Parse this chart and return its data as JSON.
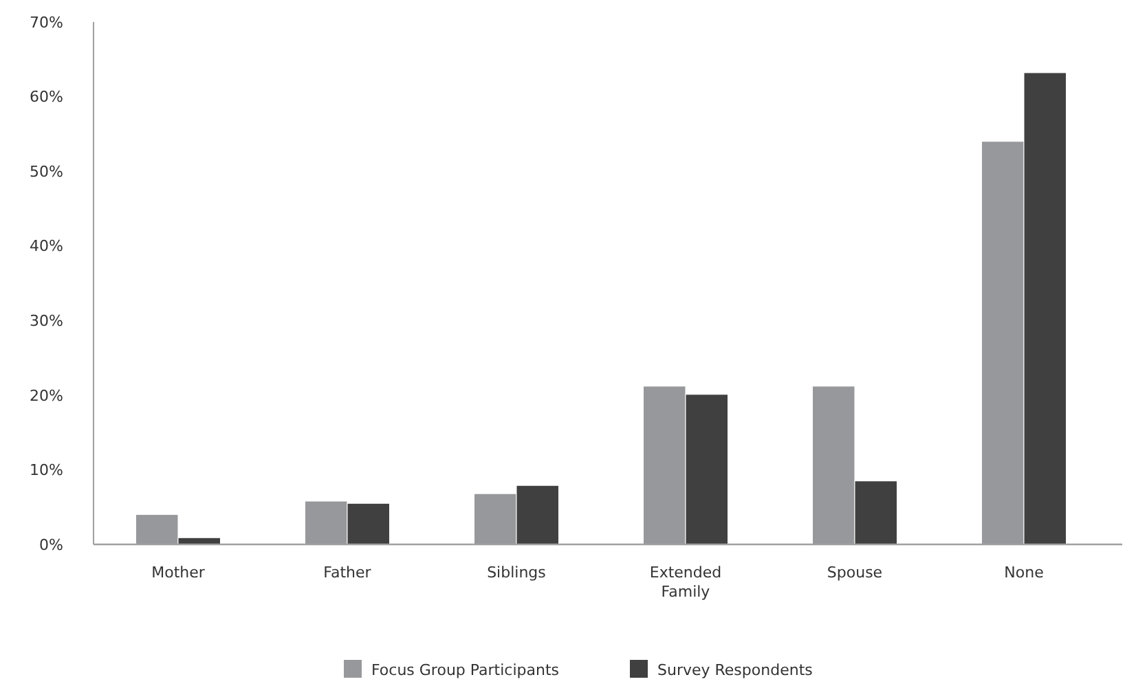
{
  "chart_data": {
    "type": "bar",
    "categories": [
      "Mother",
      "Father",
      "Siblings",
      "Extended Family",
      "Spouse",
      "None"
    ],
    "series": [
      {
        "name": "Focus Group Participants",
        "color": "#97989b",
        "values": [
          4.0,
          5.8,
          6.8,
          21.2,
          21.2,
          54.0
        ]
      },
      {
        "name": "Survey Respondents",
        "color": "#404040",
        "values": [
          0.9,
          5.5,
          7.9,
          20.1,
          8.5,
          63.2
        ]
      }
    ],
    "ylim": [
      0,
      70
    ],
    "yticks": [
      {
        "value": 0,
        "label": "0%"
      },
      {
        "value": 10,
        "label": "10%"
      },
      {
        "value": 20,
        "label": "20%"
      },
      {
        "value": 30,
        "label": "30%"
      },
      {
        "value": 40,
        "label": "40%"
      },
      {
        "value": 50,
        "label": "50%"
      },
      {
        "value": 60,
        "label": "60%"
      },
      {
        "value": 70,
        "label": "70%"
      }
    ],
    "grid": false,
    "legend": "bottom"
  }
}
